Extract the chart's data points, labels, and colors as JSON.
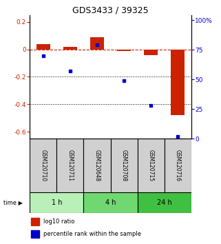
{
  "title": "GDS3433 / 39325",
  "samples": [
    "GSM120710",
    "GSM120711",
    "GSM120648",
    "GSM120708",
    "GSM120715",
    "GSM120716"
  ],
  "log10_ratio": [
    0.04,
    0.02,
    0.09,
    -0.01,
    -0.04,
    -0.48
  ],
  "percentile_rank": [
    70,
    57,
    79,
    49,
    28,
    2
  ],
  "groups": [
    {
      "label": "1 h",
      "indices": [
        0,
        1
      ],
      "color": "#b8f0b8"
    },
    {
      "label": "4 h",
      "indices": [
        2,
        3
      ],
      "color": "#70d870"
    },
    {
      "label": "24 h",
      "indices": [
        4,
        5
      ],
      "color": "#40c040"
    }
  ],
  "bar_color_red": "#cc2200",
  "bar_color_blue": "#0000cc",
  "ylim_left": [
    -0.65,
    0.25
  ],
  "ylim_right": [
    0,
    104.17
  ],
  "yticks_left": [
    0.2,
    0.0,
    -0.2,
    -0.4,
    -0.6
  ],
  "yticks_right": [
    100,
    75,
    50,
    25,
    0
  ],
  "hline_value": 0.0,
  "dotted_lines": [
    -0.2,
    -0.4
  ],
  "legend_items": [
    {
      "label": "log10 ratio",
      "color": "#cc2200"
    },
    {
      "label": "percentile rank within the sample",
      "color": "#0000cc"
    }
  ],
  "sample_box_color": "#d0d0d0",
  "title_fontsize": 9,
  "tick_fontsize": 6.5,
  "bar_width": 0.5,
  "scatter_size": 12
}
